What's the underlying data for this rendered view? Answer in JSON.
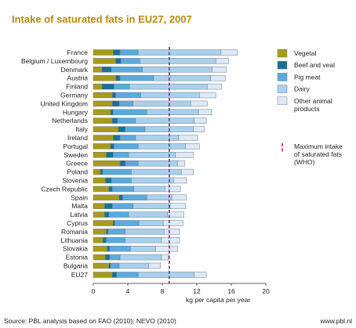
{
  "chart_data": {
    "type": "bar",
    "orientation": "horizontal",
    "stacked": true,
    "title": "Intake of saturated fats in EU27, 2007",
    "xlabel": "kg per capita per year",
    "ylabel": "",
    "xlim": [
      0,
      20
    ],
    "xticks": [
      "0",
      "4",
      "8",
      "12",
      "16",
      "20"
    ],
    "grid": false,
    "legend_position": "right",
    "categories": [
      "France",
      "Belgium / Luxembourg",
      "Denmark",
      "Austria",
      "Finland",
      "Germany",
      "United Kingdom",
      "Hungary",
      "Netherlands",
      "Italy",
      "Ireland",
      "Portugal",
      "Sweden",
      "Greece",
      "Poland",
      "Slovenia",
      "Czech Republic",
      "Spain",
      "Malta",
      "Latvia",
      "Cyprus",
      "Romania",
      "Lithuania",
      "Slovakia",
      "Estonia",
      "Bulgaria",
      "EU27"
    ],
    "series": [
      {
        "name": "Vegetal",
        "color": "#a79a1c",
        "values": [
          2.3,
          2.6,
          1.0,
          2.6,
          1.0,
          2.2,
          2.2,
          2.0,
          2.2,
          2.9,
          2.3,
          2.0,
          1.5,
          3.1,
          0.8,
          1.4,
          1.8,
          3.0,
          1.3,
          1.3,
          2.3,
          1.5,
          1.1,
          1.6,
          1.4,
          1.8,
          2.2
        ]
      },
      {
        "name": "Beef and veal",
        "color": "#1b6f93",
        "values": [
          0.8,
          0.6,
          1.1,
          0.5,
          1.4,
          0.4,
          0.8,
          0.3,
          0.6,
          0.8,
          0.8,
          0.4,
          0.8,
          0.6,
          0.3,
          0.7,
          0.4,
          0.4,
          0.9,
          0.5,
          0.2,
          0.2,
          0.4,
          0.3,
          0.5,
          0.2,
          0.5
        ]
      },
      {
        "name": "Pig meat",
        "color": "#5aaadc",
        "values": [
          2.1,
          2.2,
          3.6,
          3.9,
          1.8,
          2.9,
          1.6,
          3.9,
          2.1,
          2.3,
          1.8,
          2.8,
          1.8,
          1.5,
          3.3,
          2.3,
          2.5,
          2.8,
          2.4,
          2.3,
          2.8,
          2.0,
          2.2,
          2.4,
          1.2,
          1.0,
          2.5
        ]
      },
      {
        "name": "Dairy",
        "color": "#a9d0ec",
        "values": [
          9.6,
          8.8,
          8.1,
          6.6,
          9.0,
          6.8,
          6.7,
          6.0,
          6.8,
          5.6,
          5.0,
          5.5,
          5.4,
          4.6,
          5.8,
          4.9,
          3.6,
          2.9,
          4.3,
          4.5,
          2.8,
          4.5,
          4.2,
          2.9,
          4.8,
          3.4,
          6.5
        ]
      },
      {
        "name": "Other animal products",
        "color": "#dde9f4",
        "values": [
          1.9,
          1.5,
          1.6,
          1.7,
          1.7,
          1.9,
          1.9,
          1.5,
          1.4,
          1.3,
          2.2,
          1.6,
          2.1,
          0.8,
          1.4,
          1.5,
          1.8,
          1.7,
          1.8,
          1.9,
          2.3,
          1.8,
          2.1,
          2.6,
          0.8,
          1.4,
          1.4
        ]
      }
    ],
    "reference_line": {
      "name": "Maximum intake of saturated fats (WHO)",
      "legend_lines": [
        "Maximum intake",
        "of saturated fats",
        "(WHO)"
      ],
      "value": 8.8,
      "color": "#a4257f"
    },
    "legend_lines": {
      "Other animal products": [
        "Other animal",
        "products"
      ]
    }
  },
  "footer": {
    "source": "Source: PBL analysis based on FAO (2010); NEVO (2010)",
    "url": "www.pbl.nl"
  }
}
